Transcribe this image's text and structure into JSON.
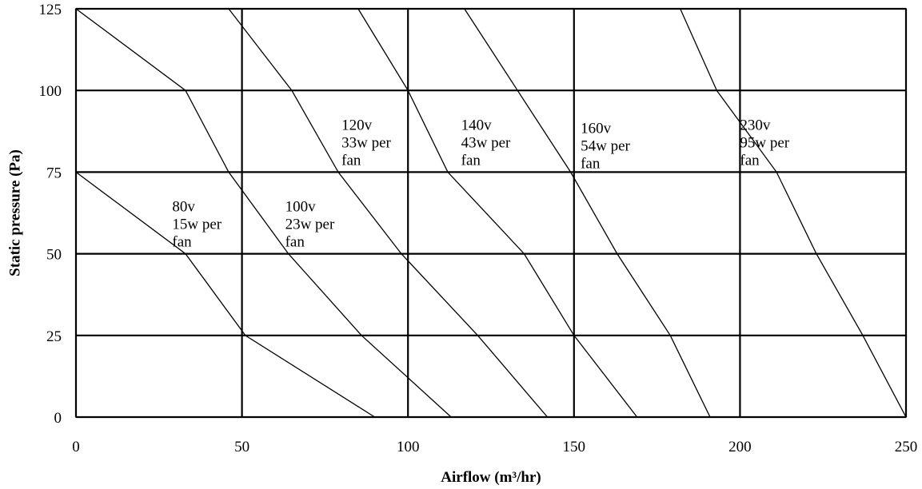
{
  "chart_data": {
    "type": "line",
    "xlabel": "Airflow (m³/hr)",
    "ylabel": "Static pressure (Pa)",
    "xlim": [
      0,
      250
    ],
    "ylim": [
      0,
      125
    ],
    "x_ticks": [
      "0",
      "50",
      "100",
      "150",
      "200",
      "250"
    ],
    "y_ticks": [
      "0",
      "25",
      "50",
      "75",
      "100",
      "125"
    ],
    "grid": true,
    "series": [
      {
        "label_lines": [
          "80v",
          "15w per",
          "fan"
        ],
        "points": [
          [
            0,
            75
          ],
          [
            33,
            50
          ],
          [
            51,
            25
          ],
          [
            90,
            0
          ]
        ]
      },
      {
        "label_lines": [
          "100v",
          "23w per",
          "fan"
        ],
        "points": [
          [
            0,
            125
          ],
          [
            33,
            100
          ],
          [
            46,
            75
          ],
          [
            64,
            50
          ],
          [
            86,
            25
          ],
          [
            113,
            0
          ]
        ]
      },
      {
        "label_lines": [
          "120v",
          "33w per",
          "fan"
        ],
        "points": [
          [
            46,
            125
          ],
          [
            65,
            100
          ],
          [
            79,
            75
          ],
          [
            98,
            50
          ],
          [
            121,
            25
          ],
          [
            142,
            0
          ]
        ]
      },
      {
        "label_lines": [
          "140v",
          "43w per",
          "fan"
        ],
        "points": [
          [
            85,
            125
          ],
          [
            100,
            100
          ],
          [
            112,
            75
          ],
          [
            135,
            50
          ],
          [
            150,
            25
          ],
          [
            169,
            0
          ]
        ]
      },
      {
        "label_lines": [
          "160v",
          "54w per",
          "fan"
        ],
        "points": [
          [
            117,
            125
          ],
          [
            133,
            100
          ],
          [
            149,
            75
          ],
          [
            163,
            50
          ],
          [
            179,
            25
          ],
          [
            191,
            0
          ]
        ]
      },
      {
        "label_lines": [
          "230v",
          "95w per",
          "fan"
        ],
        "points": [
          [
            182,
            125
          ],
          [
            193,
            100
          ],
          [
            211,
            75
          ],
          [
            223,
            50
          ],
          [
            237,
            25
          ],
          [
            250,
            0
          ]
        ]
      }
    ]
  }
}
